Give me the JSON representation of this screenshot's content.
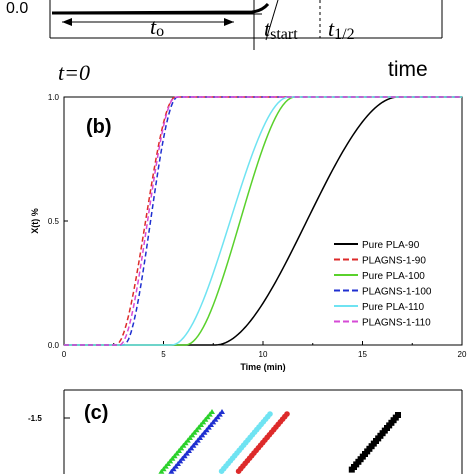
{
  "panel_a": {
    "y_tick": "0.0",
    "t0": "t",
    "t0_sub": "o",
    "tstart": "t",
    "tstart_sub": "start",
    "thalf": "t",
    "thalf_sub": "1/2"
  },
  "panel_b_caption": {
    "t_equals_zero": "t=0",
    "time_word": "time"
  },
  "chart_data": [
    {
      "type": "line",
      "panel_label": "(b)",
      "xlabel": "Time (min)",
      "ylabel": "X(t) %",
      "xlim": [
        0,
        20
      ],
      "ylim": [
        0,
        1
      ],
      "x_ticks": [
        "0",
        "5",
        "10",
        "15",
        "20"
      ],
      "y_ticks": [
        "0.0",
        "0.5",
        "1.0"
      ],
      "legend_position": "bottom-right",
      "series": [
        {
          "name": "Pure PLA-90",
          "color": "#000000",
          "dash": "solid",
          "t_start": 7.6,
          "t_end": 16.8
        },
        {
          "name": "PLAGNS-1-90",
          "color": "#dd2a2a",
          "dash": "dashed",
          "t_start": 2.6,
          "t_end": 5.6
        },
        {
          "name": "Pure PLA-100",
          "color": "#5ad12c",
          "dash": "solid",
          "t_start": 6.1,
          "t_end": 11.6
        },
        {
          "name": "PLAGNS-1-100",
          "color": "#1f2fd0",
          "dash": "dashed",
          "t_start": 3.0,
          "t_end": 5.7
        },
        {
          "name": "Pure PLA-110",
          "color": "#6fe3f2",
          "dash": "solid",
          "t_start": 5.4,
          "t_end": 11.3
        },
        {
          "name": "PLAGNS-1-110",
          "color": "#d64ad6",
          "dash": "dashed",
          "t_start": 2.8,
          "t_end": 5.6
        }
      ]
    },
    {
      "type": "scatter",
      "panel_label": "(c)",
      "y_ticks": [
        "-1.5"
      ],
      "series": [
        {
          "name": "",
          "color": "#2bd12b",
          "marker": "triangle"
        },
        {
          "name": "",
          "color": "#1f2fd0",
          "marker": "triangle"
        },
        {
          "name": "",
          "color": "#6fe3f2",
          "marker": "circle"
        },
        {
          "name": "",
          "color": "#dd2a2a",
          "marker": "circle"
        },
        {
          "name": "",
          "color": "#000000",
          "marker": "square"
        }
      ]
    }
  ]
}
